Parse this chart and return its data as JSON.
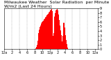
{
  "title": "Milwaukee Weather  Solar Radiation  per Minute W/m2 (Last 24 Hours)",
  "bar_color": "#ff0000",
  "background_color": "#ffffff",
  "plot_bg_color": "#ffffff",
  "grid_color": "#888888",
  "ylim": [
    0,
    900
  ],
  "title_fontsize": 4.5,
  "tick_fontsize": 3.5,
  "solar_data": [
    0,
    0,
    0,
    0,
    0,
    0,
    0,
    0,
    0,
    0,
    0,
    0,
    0,
    0,
    0,
    0,
    0,
    0,
    0,
    0,
    0,
    0,
    0,
    0,
    0,
    0,
    0,
    0,
    0,
    0,
    0,
    0,
    0,
    0,
    0,
    0,
    0,
    0,
    0,
    0,
    0,
    0,
    0,
    0,
    0,
    0,
    0,
    0,
    0,
    0,
    0,
    0,
    0,
    0,
    0,
    0,
    0,
    0,
    0,
    0,
    0,
    0,
    0,
    0,
    0,
    0,
    0,
    0,
    0,
    0,
    0,
    0,
    0,
    0,
    0,
    0,
    0,
    0,
    0,
    0,
    0,
    0,
    0,
    0,
    0,
    0,
    0,
    0,
    0,
    0,
    0,
    0,
    0,
    0,
    0,
    0,
    0,
    5,
    10,
    20,
    30,
    50,
    70,
    100,
    140,
    190,
    240,
    300,
    360,
    400,
    430,
    460,
    490,
    510,
    530,
    550,
    565,
    575,
    585,
    595,
    605,
    615,
    625,
    635,
    645,
    655,
    665,
    675,
    685,
    695,
    705,
    715,
    725,
    735,
    745,
    755,
    765,
    775,
    785,
    795,
    805,
    815,
    820,
    830,
    840,
    850,
    860,
    870,
    880,
    890,
    900,
    870,
    840,
    700,
    300,
    250,
    350,
    550,
    720,
    780,
    800,
    820,
    840,
    850,
    860,
    870,
    880,
    880,
    870,
    860,
    840,
    800,
    760,
    700,
    640,
    580,
    520,
    460,
    410,
    360,
    310,
    260,
    210,
    170,
    130,
    300,
    470,
    580,
    630,
    580,
    530,
    470,
    420,
    370,
    310,
    260,
    200,
    150,
    110,
    70,
    40,
    15,
    5,
    2,
    0,
    0,
    0,
    0,
    0,
    0,
    0,
    0,
    0,
    0,
    0,
    0,
    0,
    0,
    0,
    0,
    0,
    0,
    0,
    0,
    0,
    0,
    0,
    0,
    0,
    0,
    0,
    0,
    0,
    0,
    0,
    0,
    0,
    0,
    0,
    0,
    0,
    0,
    0,
    0,
    0,
    0,
    0,
    0,
    0,
    0,
    0,
    0,
    0,
    0,
    0,
    0,
    0,
    0,
    0,
    0,
    0,
    0,
    0,
    0,
    0,
    0,
    0,
    0,
    0,
    0,
    0,
    0,
    0,
    0,
    0,
    0,
    0,
    0,
    0,
    0,
    0,
    0,
    0,
    0,
    0,
    0,
    0,
    0,
    0,
    0,
    0,
    0,
    0,
    0,
    0,
    0
  ],
  "xtick_positions": [
    0,
    24,
    48,
    72,
    96,
    120,
    144,
    168,
    192,
    216,
    240,
    264,
    287
  ],
  "xtick_labels": [
    "12a",
    "2",
    "4",
    "6",
    "8",
    "10",
    "12p",
    "2",
    "4",
    "6",
    "8",
    "10",
    "12a"
  ],
  "ytick_vals": [
    0,
    100,
    200,
    300,
    400,
    500,
    600,
    700,
    800,
    900
  ],
  "ytick_labels": [
    "0",
    "1",
    "2",
    "3",
    "4",
    "5",
    "6",
    "7",
    "8",
    "9"
  ]
}
